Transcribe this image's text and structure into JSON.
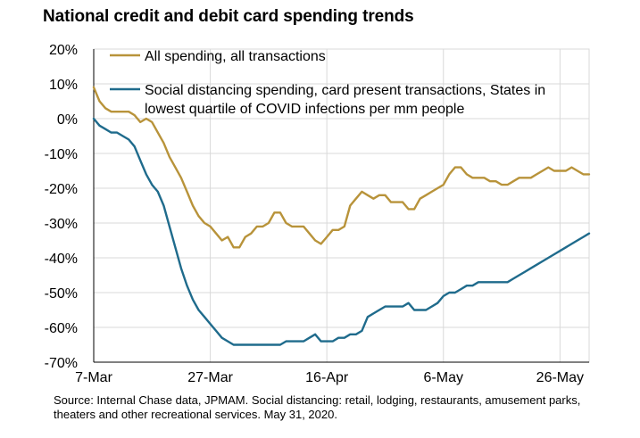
{
  "title": "National credit and debit card spending trends",
  "source": "Source:  Internal Chase data, JPMAM. Social distancing: retail, lodging, restaurants, amusement parks, theaters and other recreational services. May 31, 2020.",
  "colors": {
    "all_spending": "#b8933a",
    "social_distancing": "#1f6b8c",
    "grid": "#d9d9d9"
  },
  "chart_data": {
    "type": "line",
    "title": "National credit and debit card spending trends",
    "xlabel": "",
    "ylabel": "",
    "ylim": [
      -70,
      20
    ],
    "xlim": [
      "2020-03-07",
      "2020-05-31"
    ],
    "y_ticks": [
      20,
      10,
      0,
      -10,
      -20,
      -30,
      -40,
      -50,
      -60,
      -70
    ],
    "y_tick_labels": [
      "20%",
      "10%",
      "0%",
      "-10%",
      "-20%",
      "-30%",
      "-40%",
      "-50%",
      "-60%",
      "-70%"
    ],
    "x_ticks": [
      "2020-03-07",
      "2020-03-27",
      "2020-04-16",
      "2020-05-06",
      "2020-05-26"
    ],
    "x_tick_labels": [
      "7-Mar",
      "27-Mar",
      "16-Apr",
      "6-May",
      "26-May"
    ],
    "grid": true,
    "legend_position": "top-left",
    "series": [
      {
        "name": "All spending, all transactions",
        "color": "#b8933a",
        "points": [
          [
            "2020-03-07",
            9
          ],
          [
            "2020-03-08",
            5
          ],
          [
            "2020-03-09",
            3
          ],
          [
            "2020-03-10",
            2
          ],
          [
            "2020-03-11",
            2
          ],
          [
            "2020-03-12",
            2
          ],
          [
            "2020-03-13",
            2
          ],
          [
            "2020-03-14",
            1
          ],
          [
            "2020-03-15",
            -1
          ],
          [
            "2020-03-16",
            0
          ],
          [
            "2020-03-17",
            -1
          ],
          [
            "2020-03-18",
            -4
          ],
          [
            "2020-03-19",
            -7
          ],
          [
            "2020-03-20",
            -11
          ],
          [
            "2020-03-21",
            -14
          ],
          [
            "2020-03-22",
            -17
          ],
          [
            "2020-03-23",
            -21
          ],
          [
            "2020-03-24",
            -25
          ],
          [
            "2020-03-25",
            -28
          ],
          [
            "2020-03-26",
            -30
          ],
          [
            "2020-03-27",
            -31
          ],
          [
            "2020-03-28",
            -33
          ],
          [
            "2020-03-29",
            -35
          ],
          [
            "2020-03-30",
            -34
          ],
          [
            "2020-03-31",
            -37
          ],
          [
            "2020-04-01",
            -37
          ],
          [
            "2020-04-02",
            -34
          ],
          [
            "2020-04-03",
            -33
          ],
          [
            "2020-04-04",
            -31
          ],
          [
            "2020-04-05",
            -31
          ],
          [
            "2020-04-06",
            -30
          ],
          [
            "2020-04-07",
            -27
          ],
          [
            "2020-04-08",
            -27
          ],
          [
            "2020-04-09",
            -30
          ],
          [
            "2020-04-10",
            -31
          ],
          [
            "2020-04-11",
            -31
          ],
          [
            "2020-04-12",
            -31
          ],
          [
            "2020-04-13",
            -33
          ],
          [
            "2020-04-14",
            -35
          ],
          [
            "2020-04-15",
            -36
          ],
          [
            "2020-04-16",
            -34
          ],
          [
            "2020-04-17",
            -32
          ],
          [
            "2020-04-18",
            -32
          ],
          [
            "2020-04-19",
            -31
          ],
          [
            "2020-04-20",
            -25
          ],
          [
            "2020-04-21",
            -23
          ],
          [
            "2020-04-22",
            -21
          ],
          [
            "2020-04-23",
            -22
          ],
          [
            "2020-04-24",
            -23
          ],
          [
            "2020-04-25",
            -22
          ],
          [
            "2020-04-26",
            -22
          ],
          [
            "2020-04-27",
            -24
          ],
          [
            "2020-04-28",
            -24
          ],
          [
            "2020-04-29",
            -24
          ],
          [
            "2020-04-30",
            -26
          ],
          [
            "2020-05-01",
            -26
          ],
          [
            "2020-05-02",
            -23
          ],
          [
            "2020-05-03",
            -22
          ],
          [
            "2020-05-04",
            -21
          ],
          [
            "2020-05-05",
            -20
          ],
          [
            "2020-05-06",
            -19
          ],
          [
            "2020-05-07",
            -16
          ],
          [
            "2020-05-08",
            -14
          ],
          [
            "2020-05-09",
            -14
          ],
          [
            "2020-05-10",
            -16
          ],
          [
            "2020-05-11",
            -17
          ],
          [
            "2020-05-12",
            -17
          ],
          [
            "2020-05-13",
            -17
          ],
          [
            "2020-05-14",
            -18
          ],
          [
            "2020-05-15",
            -18
          ],
          [
            "2020-05-16",
            -19
          ],
          [
            "2020-05-17",
            -19
          ],
          [
            "2020-05-18",
            -18
          ],
          [
            "2020-05-19",
            -17
          ],
          [
            "2020-05-20",
            -17
          ],
          [
            "2020-05-21",
            -17
          ],
          [
            "2020-05-22",
            -16
          ],
          [
            "2020-05-23",
            -15
          ],
          [
            "2020-05-24",
            -14
          ],
          [
            "2020-05-25",
            -15
          ],
          [
            "2020-05-26",
            -15
          ],
          [
            "2020-05-27",
            -15
          ],
          [
            "2020-05-28",
            -14
          ],
          [
            "2020-05-29",
            -15
          ],
          [
            "2020-05-30",
            -16
          ],
          [
            "2020-05-31",
            -16
          ]
        ]
      },
      {
        "name": "Social distancing spending, card present transactions, States in lowest quartile of COVID infections per mm people",
        "color": "#1f6b8c",
        "points": [
          [
            "2020-03-07",
            0
          ],
          [
            "2020-03-08",
            -2
          ],
          [
            "2020-03-09",
            -3
          ],
          [
            "2020-03-10",
            -4
          ],
          [
            "2020-03-11",
            -4
          ],
          [
            "2020-03-12",
            -5
          ],
          [
            "2020-03-13",
            -6
          ],
          [
            "2020-03-14",
            -8
          ],
          [
            "2020-03-15",
            -12
          ],
          [
            "2020-03-16",
            -16
          ],
          [
            "2020-03-17",
            -19
          ],
          [
            "2020-03-18",
            -21
          ],
          [
            "2020-03-19",
            -25
          ],
          [
            "2020-03-20",
            -31
          ],
          [
            "2020-03-21",
            -37
          ],
          [
            "2020-03-22",
            -43
          ],
          [
            "2020-03-23",
            -48
          ],
          [
            "2020-03-24",
            -52
          ],
          [
            "2020-03-25",
            -55
          ],
          [
            "2020-03-26",
            -57
          ],
          [
            "2020-03-27",
            -59
          ],
          [
            "2020-03-28",
            -61
          ],
          [
            "2020-03-29",
            -63
          ],
          [
            "2020-03-30",
            -64
          ],
          [
            "2020-03-31",
            -65
          ],
          [
            "2020-04-01",
            -65
          ],
          [
            "2020-04-02",
            -65
          ],
          [
            "2020-04-03",
            -65
          ],
          [
            "2020-04-04",
            -65
          ],
          [
            "2020-04-05",
            -65
          ],
          [
            "2020-04-06",
            -65
          ],
          [
            "2020-04-07",
            -65
          ],
          [
            "2020-04-08",
            -65
          ],
          [
            "2020-04-09",
            -64
          ],
          [
            "2020-04-10",
            -64
          ],
          [
            "2020-04-11",
            -64
          ],
          [
            "2020-04-12",
            -64
          ],
          [
            "2020-04-13",
            -63
          ],
          [
            "2020-04-14",
            -62
          ],
          [
            "2020-04-15",
            -64
          ],
          [
            "2020-04-16",
            -64
          ],
          [
            "2020-04-17",
            -64
          ],
          [
            "2020-04-18",
            -63
          ],
          [
            "2020-04-19",
            -63
          ],
          [
            "2020-04-20",
            -62
          ],
          [
            "2020-04-21",
            -62
          ],
          [
            "2020-04-22",
            -61
          ],
          [
            "2020-04-23",
            -57
          ],
          [
            "2020-04-24",
            -56
          ],
          [
            "2020-04-25",
            -55
          ],
          [
            "2020-04-26",
            -54
          ],
          [
            "2020-04-27",
            -54
          ],
          [
            "2020-04-28",
            -54
          ],
          [
            "2020-04-29",
            -54
          ],
          [
            "2020-04-30",
            -53
          ],
          [
            "2020-05-01",
            -55
          ],
          [
            "2020-05-02",
            -55
          ],
          [
            "2020-05-03",
            -55
          ],
          [
            "2020-05-04",
            -54
          ],
          [
            "2020-05-05",
            -53
          ],
          [
            "2020-05-06",
            -51
          ],
          [
            "2020-05-07",
            -50
          ],
          [
            "2020-05-08",
            -50
          ],
          [
            "2020-05-09",
            -49
          ],
          [
            "2020-05-10",
            -48
          ],
          [
            "2020-05-11",
            -48
          ],
          [
            "2020-05-12",
            -47
          ],
          [
            "2020-05-13",
            -47
          ],
          [
            "2020-05-14",
            -47
          ],
          [
            "2020-05-15",
            -47
          ],
          [
            "2020-05-16",
            -47
          ],
          [
            "2020-05-17",
            -47
          ],
          [
            "2020-05-18",
            -46
          ],
          [
            "2020-05-19",
            -45
          ],
          [
            "2020-05-20",
            -44
          ],
          [
            "2020-05-21",
            -43
          ],
          [
            "2020-05-22",
            -42
          ],
          [
            "2020-05-23",
            -41
          ],
          [
            "2020-05-24",
            -40
          ],
          [
            "2020-05-25",
            -39
          ],
          [
            "2020-05-26",
            -38
          ],
          [
            "2020-05-27",
            -37
          ],
          [
            "2020-05-28",
            -36
          ],
          [
            "2020-05-29",
            -35
          ],
          [
            "2020-05-30",
            -34
          ],
          [
            "2020-05-31",
            -33
          ]
        ]
      }
    ]
  }
}
